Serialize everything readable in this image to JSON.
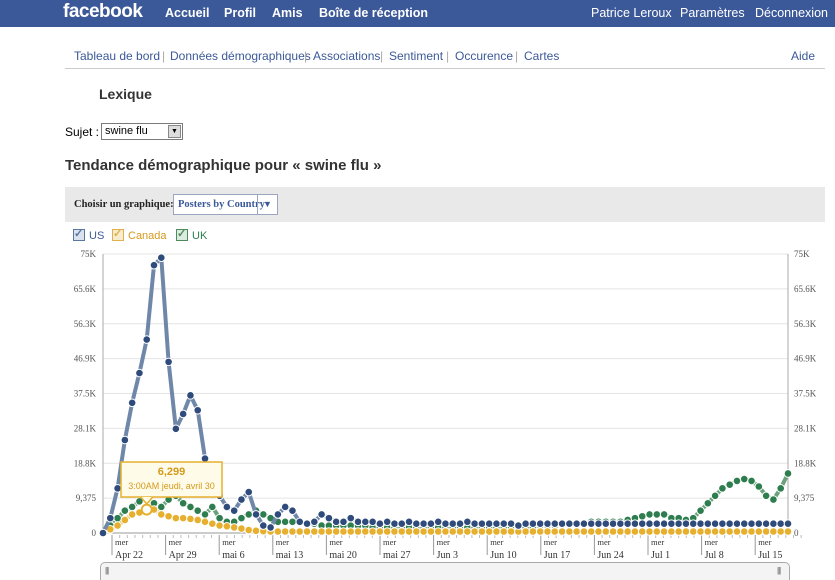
{
  "topbar": {
    "logo": "facebook",
    "nav": [
      "Accueil",
      "Profil",
      "Amis",
      "Boîte de réception"
    ],
    "user": "Patrice Leroux",
    "settings": "Paramètres",
    "logout": "Déconnexion"
  },
  "subnav": {
    "items": [
      "Tableau de bord",
      "Données démographiques",
      "Associations",
      "Sentiment",
      "Occurence",
      "Cartes"
    ],
    "help": "Aide"
  },
  "page": {
    "title": "Lexique",
    "subject_label": "Sujet :",
    "subject_value": "swine flu",
    "heading": "Tendance démographique pour « swine flu »"
  },
  "chooser": {
    "label": "Choisir un graphique:",
    "value": "Posters by Country"
  },
  "tooltip": {
    "value": "6,299",
    "time": "3:00AM jeudi, avril 30"
  },
  "chart_data": {
    "type": "line",
    "ylim": [
      0,
      75000
    ],
    "y_ticks": [
      "0",
      "9,375",
      "18.8K",
      "28.1K",
      "37.5K",
      "46.9K",
      "56.3K",
      "65.6K",
      "75K"
    ],
    "x_day_label": "mer",
    "x_labels": [
      "Apr 22",
      "Apr 29",
      "mai 6",
      "mai 13",
      "mai 20",
      "mai 27",
      "Jun 3",
      "Jun 10",
      "Jun 17",
      "Jun 24",
      "Jul 1",
      "Jul 8",
      "Jul 15"
    ],
    "grid": true,
    "legend_placement": "top-left",
    "colors": {
      "US": "#2f4b7c",
      "Canada": "#e6b02e",
      "UK": "#2e7d4f"
    },
    "series": [
      {
        "name": "US",
        "values": [
          0,
          4000,
          12000,
          25000,
          35000,
          43000,
          52000,
          72000,
          74000,
          46000,
          28000,
          32000,
          37000,
          33000,
          20000,
          14000,
          10000,
          7000,
          6000,
          9000,
          11000,
          5000,
          2000,
          1500,
          5000,
          7000,
          6000,
          3000,
          2500,
          3000,
          5000,
          4000,
          3000,
          3000,
          4000,
          3000,
          3000,
          3000,
          2500,
          3000,
          2500,
          2500,
          3000,
          2500,
          2500,
          2500,
          3000,
          2500,
          2500,
          2500,
          3000,
          2500,
          2500,
          2500,
          2500,
          2500,
          2500,
          2000,
          2500,
          2500,
          2500,
          2500,
          2500,
          2500,
          2500,
          2500,
          2500,
          2500,
          2500,
          2500,
          2500,
          2500,
          2500,
          2500,
          2500,
          2500,
          2500,
          2500,
          2500,
          2500,
          2500,
          2500,
          2500,
          2500,
          2500,
          2500,
          2500,
          2500,
          2500,
          2500,
          2500,
          2500,
          2500,
          2500,
          2500
        ]
      },
      {
        "name": "Canada",
        "values": [
          0,
          1000,
          2000,
          3500,
          5000,
          5500,
          6299,
          6300,
          5000,
          4500,
          4000,
          4000,
          3800,
          3500,
          3000,
          2500,
          2000,
          1800,
          1500,
          1200,
          800,
          600,
          500,
          400,
          400,
          400,
          400,
          400,
          400,
          400,
          400,
          400,
          400,
          400,
          400,
          400,
          400,
          400,
          400,
          400,
          400,
          400,
          400,
          400,
          400,
          400,
          400,
          400,
          400,
          400,
          400,
          400,
          400,
          400,
          400,
          400,
          400,
          400,
          400,
          400,
          400,
          400,
          400,
          400,
          400,
          400,
          400,
          400,
          400,
          400,
          400,
          400,
          400,
          400,
          400,
          400,
          400,
          400,
          400,
          400,
          400,
          400,
          400,
          400,
          400,
          400,
          400,
          400,
          400,
          400,
          400,
          400,
          400,
          400,
          400
        ]
      },
      {
        "name": "UK",
        "values": [
          0,
          2000,
          4000,
          6000,
          7000,
          8500,
          9000,
          8000,
          7000,
          9000,
          10000,
          8000,
          7000,
          6000,
          5000,
          7000,
          4000,
          3000,
          3000,
          4000,
          5000,
          6000,
          5000,
          4000,
          3000,
          3000,
          3000,
          3000,
          2500,
          2500,
          2000,
          2000,
          2000,
          2000,
          2000,
          2000,
          2000,
          1500,
          1500,
          1500,
          1500,
          1500,
          1500,
          1500,
          1500,
          1500,
          1500,
          1500,
          1500,
          1500,
          1500,
          1500,
          1500,
          1500,
          1500,
          1500,
          1500,
          1500,
          1500,
          1500,
          2000,
          2000,
          2000,
          2500,
          2500,
          2500,
          2500,
          3000,
          3000,
          3000,
          3000,
          3000,
          3500,
          4000,
          4500,
          5000,
          5000,
          5000,
          4000,
          4000,
          3500,
          4000,
          6000,
          8000,
          10000,
          12000,
          13000,
          14000,
          14500,
          14000,
          12500,
          10000,
          9000,
          12000,
          16000
        ]
      }
    ]
  },
  "legend": [
    {
      "name": "US",
      "color": "#5a77a0"
    },
    {
      "name": "Canada",
      "color": "#e0b04a"
    },
    {
      "name": "UK",
      "color": "#4f8a5f"
    }
  ]
}
